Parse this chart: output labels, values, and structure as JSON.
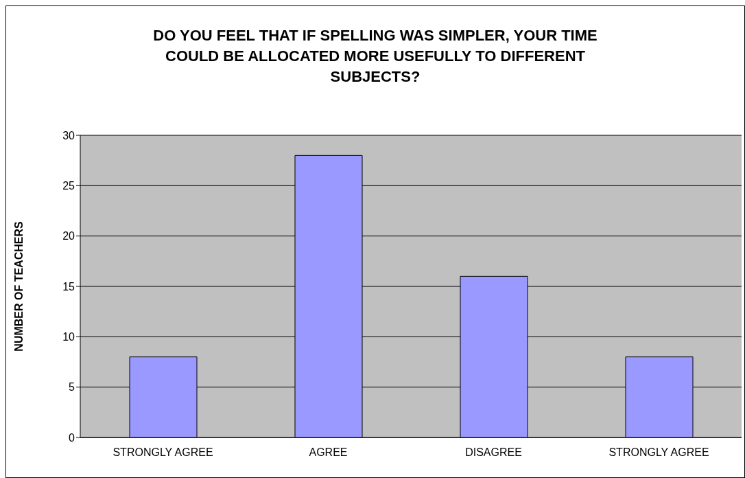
{
  "chart_data": {
    "type": "bar",
    "title": "DO YOU FEEL THAT IF SPELLING WAS SIMPLER, YOUR TIME COULD BE ALLOCATED MORE USEFULLY TO DIFFERENT SUBJECTS?",
    "ylabel": "NUMBER OF TEACHERS",
    "categories": [
      "STRONGLY AGREE",
      "AGREE",
      "DISAGREE",
      "STRONGLY AGREE"
    ],
    "values": [
      8,
      28,
      16,
      8
    ],
    "color": "#9999ff",
    "ylim": [
      0,
      30
    ],
    "yticks": [
      0,
      5,
      10,
      15,
      20,
      25,
      30
    ],
    "grid": "y",
    "legend": false
  }
}
